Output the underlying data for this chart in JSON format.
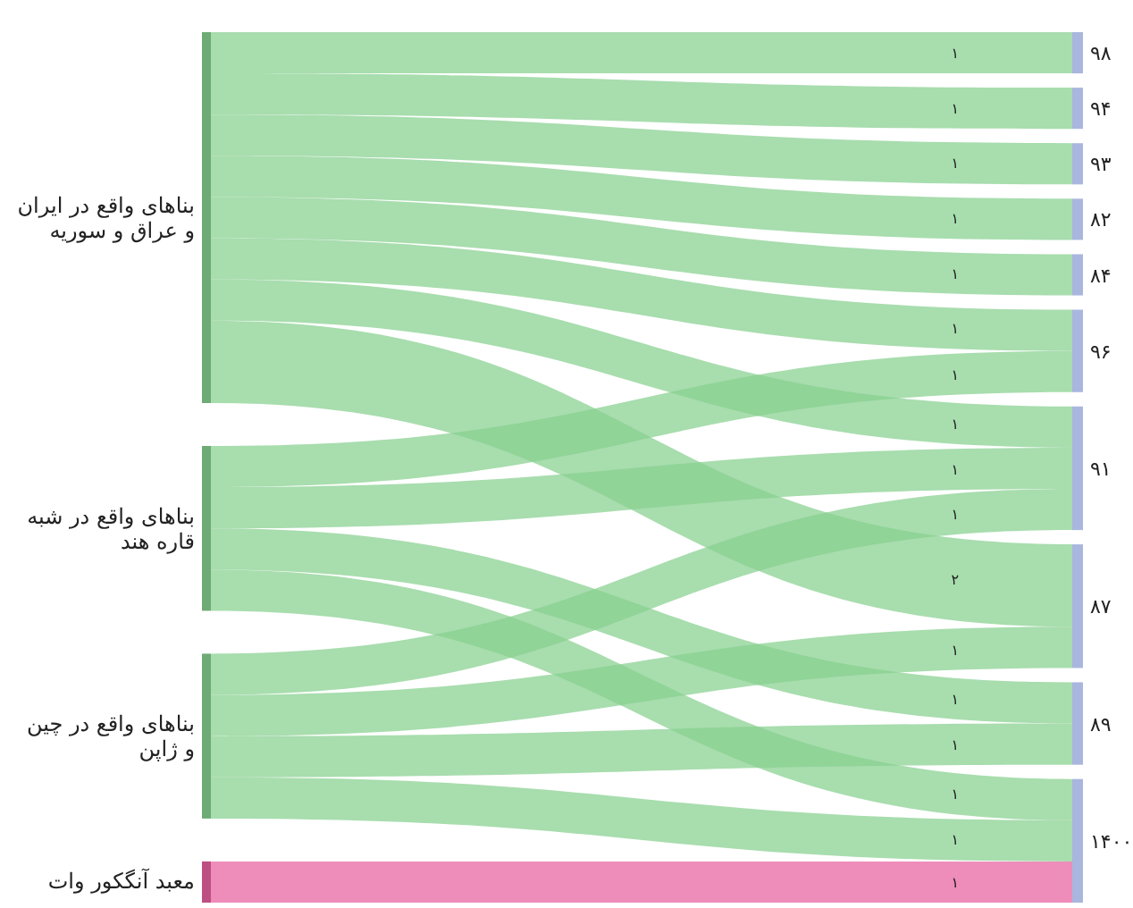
{
  "chart_data": {
    "type": "other",
    "categories": [
      "۹۸",
      "۹۴",
      "۹۳",
      "۸۲",
      "۸۴",
      "۹۶",
      "۹۱",
      "۸۷",
      "۸۹",
      "۱۴۰۰"
    ],
    "series": [
      {
        "name": "بناهای واقع در ایران و عراق و سوریه",
        "color": "#86d08f",
        "values": [
          1,
          1,
          1,
          1,
          1,
          1,
          1,
          2,
          null,
          null
        ],
        "value_labels": [
          "۱",
          "۱",
          "۱",
          "۱",
          "۱",
          "۱",
          "۱",
          "۲",
          null,
          null
        ]
      },
      {
        "name": "بناهای واقع در شبه قاره هند",
        "color": "#86d08f",
        "values": [
          null,
          null,
          null,
          null,
          null,
          1,
          1,
          null,
          1,
          1
        ],
        "value_labels": [
          null,
          null,
          null,
          null,
          null,
          "۱",
          "۱",
          null,
          "۱",
          "۱"
        ]
      },
      {
        "name": "بناهای واقع در چین و ژاپن",
        "color": "#86d08f",
        "values": [
          null,
          null,
          null,
          null,
          null,
          null,
          1,
          1,
          1,
          1
        ],
        "value_labels": [
          null,
          null,
          null,
          null,
          null,
          null,
          "۱",
          "۱",
          "۱",
          "۱"
        ]
      },
      {
        "name": "معبد آنگکور وات",
        "color": "#e8609f",
        "values": [
          null,
          null,
          null,
          null,
          null,
          null,
          null,
          null,
          null,
          1
        ],
        "value_labels": [
          null,
          null,
          null,
          null,
          null,
          null,
          null,
          null,
          null,
          "۱"
        ]
      }
    ]
  }
}
